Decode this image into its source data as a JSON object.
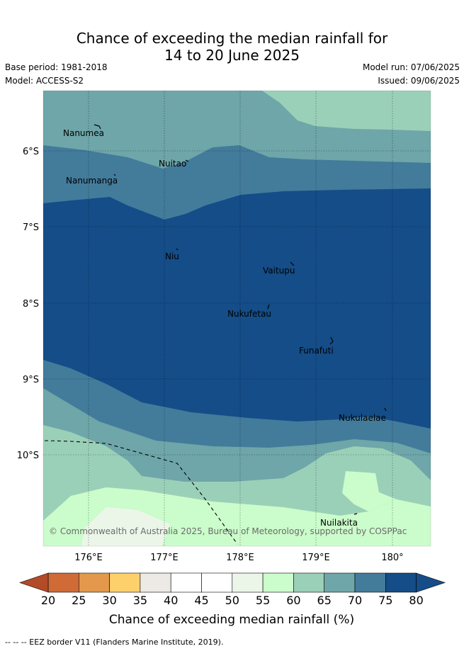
{
  "header": {
    "title_line1": "Chance of exceeding the median rainfall for",
    "title_line2": "14 to 20 June 2025",
    "base_period": "Base period: 1981-2018",
    "model": "Model: ACCESS-S2",
    "model_run": "Model run: 07/06/2025",
    "issued": "Issued: 09/06/2025"
  },
  "map": {
    "lat_labels": [
      "6°S",
      "7°S",
      "8°S",
      "9°S",
      "10°S"
    ],
    "lon_labels": [
      "176°E",
      "177°E",
      "178°E",
      "179°E",
      "180°"
    ],
    "islands": [
      "Nanumea",
      "Nuitao",
      "Nanumanga",
      "Niu",
      "Vaitupu",
      "Nukufetau",
      "Funafuti",
      "Nukulaelae",
      "Nuilakita"
    ],
    "copyright": "© Commonwealth of Australia 2025, Bureau of Meteorology, supported by COSPPac"
  },
  "colorbar": {
    "ticks": [
      "20",
      "25",
      "30",
      "35",
      "40",
      "45",
      "50",
      "55",
      "60",
      "65",
      "70",
      "75",
      "80"
    ],
    "colors": [
      "#b34a28",
      "#d06a36",
      "#e3984c",
      "#fdd06b",
      "#edeae5",
      "#ffffff",
      "#ffffff",
      "#ebf6e9",
      "#cbfccb",
      "#9bd0b8",
      "#6ea6a9",
      "#437b9b",
      "#144d88"
    ],
    "label": "Chance of exceeding median rainfall (%)"
  },
  "footer": {
    "eez_note": "-- -- -- EEZ border V11 (Flanders Marine Institute, 2019)."
  }
}
